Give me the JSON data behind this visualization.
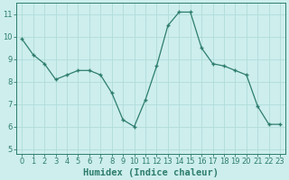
{
  "x": [
    0,
    1,
    2,
    3,
    4,
    5,
    6,
    7,
    8,
    9,
    10,
    11,
    12,
    13,
    14,
    15,
    16,
    17,
    18,
    19,
    20,
    21,
    22,
    23
  ],
  "y": [
    9.9,
    9.2,
    8.8,
    8.1,
    8.3,
    8.5,
    8.5,
    8.3,
    7.5,
    6.3,
    6.0,
    7.2,
    8.7,
    10.5,
    11.1,
    11.1,
    9.5,
    8.8,
    8.7,
    8.5,
    8.3,
    6.9,
    6.1,
    6.1
  ],
  "xlabel": "Humidex (Indice chaleur)",
  "ylabel": "",
  "xlim": [
    -0.5,
    23.5
  ],
  "ylim": [
    4.8,
    11.5
  ],
  "yticks": [
    5,
    6,
    7,
    8,
    9,
    10,
    11
  ],
  "xticks": [
    0,
    1,
    2,
    3,
    4,
    5,
    6,
    7,
    8,
    9,
    10,
    11,
    12,
    13,
    14,
    15,
    16,
    17,
    18,
    19,
    20,
    21,
    22,
    23
  ],
  "line_color": "#2e7d6e",
  "marker": "+",
  "bg_color": "#cdeeed",
  "grid_color": "#b0dbd9",
  "axis_color": "#2e7d6e",
  "label_color": "#2e7d6e",
  "tick_label_color": "#2e7d6e",
  "xlabel_fontsize": 7.5,
  "tick_fontsize": 6.0
}
